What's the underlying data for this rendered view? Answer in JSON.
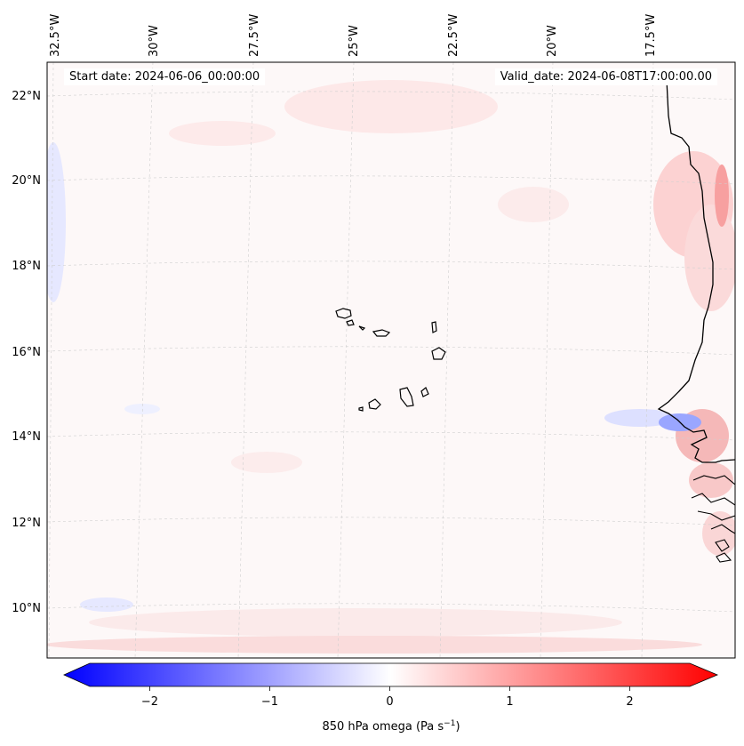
{
  "map": {
    "start_date": "Start date: 2024-06-06_00:00:00",
    "valid_date": "Valid_date: 2024-06-08T17:00:00.00",
    "lon_labels": [
      "32.5°W",
      "30°W",
      "27.5°W",
      "25°W",
      "22.5°W",
      "20°W",
      "17.5°W"
    ],
    "lat_labels": [
      "22°N",
      "20°N",
      "18°N",
      "16°N",
      "14°N",
      "12°N",
      "10°N"
    ],
    "features": [
      "Cape Verde islands",
      "West African coastline"
    ]
  },
  "colorbar": {
    "label": "850 hPa omega (Pa s",
    "label_exponent": "−1",
    "label_close": ")",
    "ticks": [
      "−2",
      "−1",
      "0",
      "1",
      "2"
    ],
    "tick_values": [
      -2,
      -1,
      0,
      1,
      2
    ],
    "range": [
      -2.5,
      2.5
    ],
    "colormap": "bwr",
    "extend": "both",
    "colors": {
      "negative": "#0000ff",
      "zero": "#ffffff",
      "positive": "#ff0000"
    }
  }
}
